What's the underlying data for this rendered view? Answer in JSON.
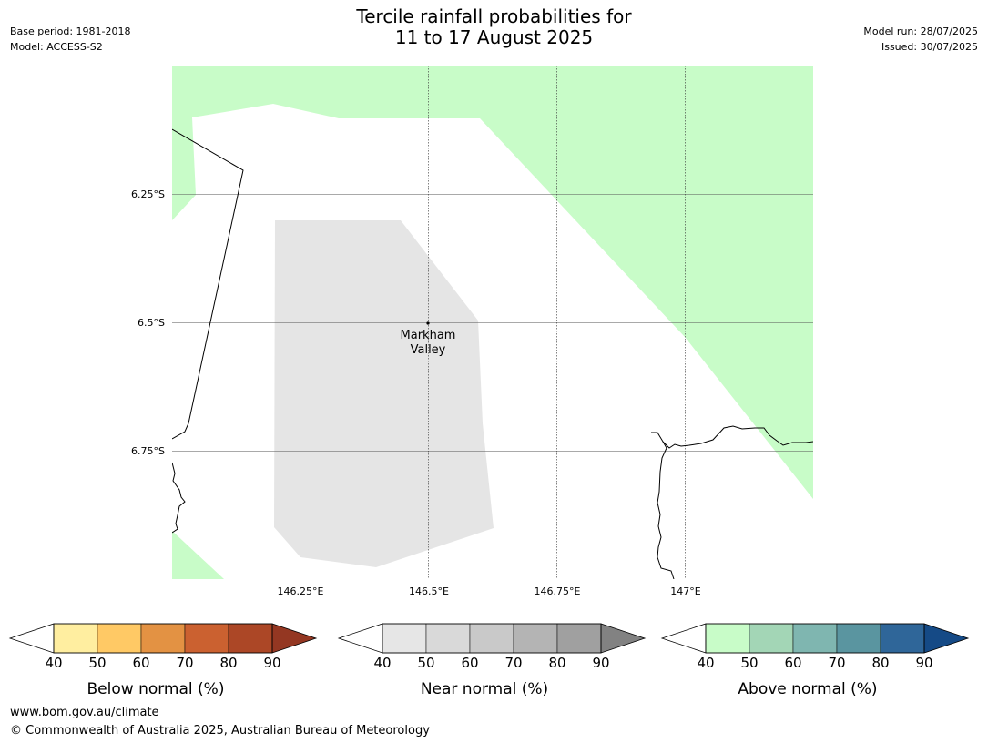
{
  "header": {
    "title_line1": "Tercile rainfall probabilities for",
    "title_line2": "11 to 17 August 2025",
    "base_period": "Base period: 1981-2018",
    "model": "Model: ACCESS-S2",
    "model_run": "Model run: 28/07/2025",
    "issued": "Issued: 30/07/2025"
  },
  "map": {
    "lat_labels": [
      "6.25°S",
      "6.5°S",
      "6.75°S"
    ],
    "lon_labels": [
      "146.25°E",
      "146.5°E",
      "146.75°E",
      "147°E"
    ],
    "location": {
      "name_line1": "Markham",
      "name_line2": "Valley"
    },
    "fill_colors": {
      "above_40_50": "#c8fcc8",
      "near_40_50": "#e5e5e5"
    }
  },
  "colorbars": [
    {
      "label": "Below normal (%)",
      "ticks": [
        "40",
        "50",
        "60",
        "70",
        "80",
        "90"
      ],
      "colors": [
        "#ffeea0",
        "#ffc965",
        "#e39243",
        "#cb6130",
        "#ac4726"
      ],
      "extend_color": "#943722"
    },
    {
      "label": "Near normal (%)",
      "ticks": [
        "40",
        "50",
        "60",
        "70",
        "80",
        "90"
      ],
      "colors": [
        "#e6e6e6",
        "#d9d9d9",
        "#c9c9c9",
        "#b4b4b4",
        "#a0a0a0"
      ],
      "extend_color": "#828282"
    },
    {
      "label": "Above normal (%)",
      "ticks": [
        "40",
        "50",
        "60",
        "70",
        "80",
        "90"
      ],
      "colors": [
        "#c8fcc8",
        "#a3d6b6",
        "#7fb6b0",
        "#5a95a0",
        "#2f6699"
      ],
      "extend_color": "#154a86"
    }
  ],
  "footer": {
    "url": "www.bom.gov.au/climate",
    "copyright": "© Commonwealth of Australia 2025, Australian Bureau of Meteorology"
  }
}
